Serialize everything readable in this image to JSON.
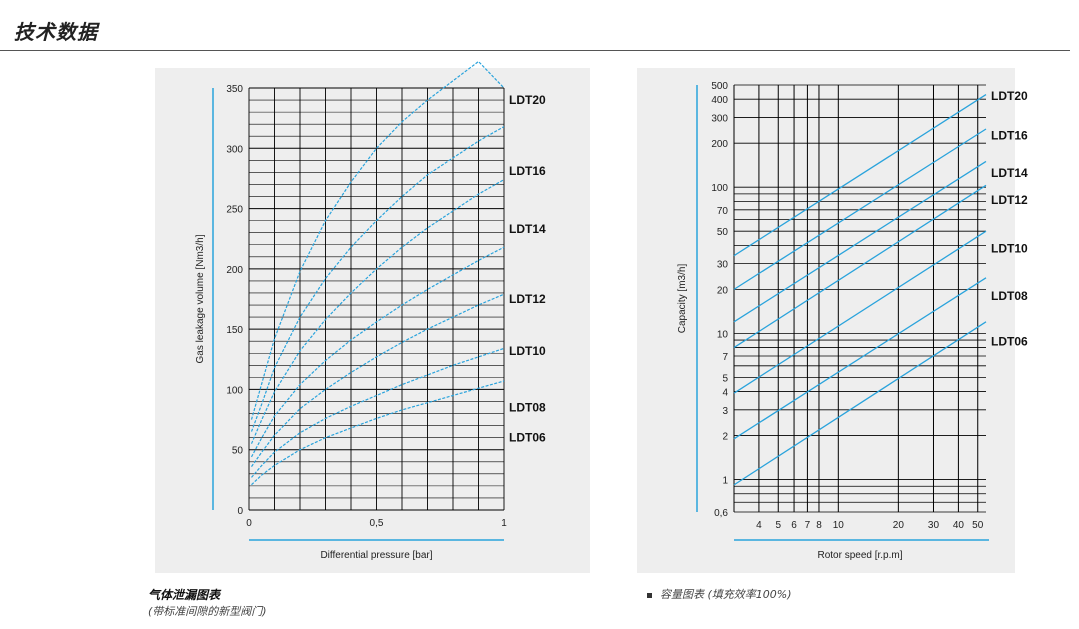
{
  "page": {
    "title": "技术数据",
    "caption_left_title": "气体泄漏图表",
    "caption_left_sub": "(带标准间隙的新型阀门)",
    "caption_right": "容量图表 (填充效率100%)"
  },
  "colors": {
    "curve": "#29a3dc",
    "grid": "#000000",
    "panel": "#eeeeee",
    "axis_bar": "#29a3dc"
  },
  "chart_data": [
    {
      "type": "line",
      "xlabel": "Differential pressure  [bar]",
      "ylabel": "Gas leakage volume [Nm3/h]",
      "xlim": [
        0,
        1
      ],
      "ylim": [
        0,
        350
      ],
      "x_ticks": [
        0,
        0.5,
        1
      ],
      "x_tick_labels": [
        "0",
        "0,5",
        "1"
      ],
      "y_ticks": [
        0,
        50,
        100,
        150,
        200,
        250,
        300,
        350
      ],
      "y_tick_labels": [
        "0",
        "50",
        "100",
        "150",
        "200",
        "250",
        "300",
        "350"
      ],
      "grid": true,
      "series": [
        {
          "name": "LDT20",
          "label_y": 340,
          "x": [
            0.01,
            0.05,
            0.1,
            0.2,
            0.3,
            0.4,
            0.5,
            0.6,
            0.7,
            0.8,
            0.9,
            1.0
          ],
          "values": [
            75,
            105,
            142,
            198,
            240,
            272,
            300,
            322,
            340,
            356,
            372,
            350
          ]
        },
        {
          "name": "LDT16",
          "label_y": 281,
          "x": [
            0.01,
            0.05,
            0.1,
            0.2,
            0.3,
            0.4,
            0.5,
            0.6,
            0.7,
            0.8,
            0.9,
            1.0
          ],
          "values": [
            65,
            88,
            118,
            160,
            192,
            218,
            240,
            260,
            278,
            292,
            306,
            318
          ]
        },
        {
          "name": "LDT14",
          "label_y": 233,
          "x": [
            0.01,
            0.05,
            0.1,
            0.2,
            0.3,
            0.4,
            0.5,
            0.6,
            0.7,
            0.8,
            0.9,
            1.0
          ],
          "values": [
            55,
            75,
            98,
            132,
            158,
            180,
            200,
            218,
            234,
            248,
            262,
            274
          ]
        },
        {
          "name": "LDT12",
          "label_y": 175,
          "x": [
            0.01,
            0.05,
            0.1,
            0.2,
            0.3,
            0.4,
            0.5,
            0.6,
            0.7,
            0.8,
            0.9,
            1.0
          ],
          "values": [
            44,
            60,
            78,
            104,
            124,
            141,
            156,
            170,
            183,
            195,
            207,
            218
          ]
        },
        {
          "name": "LDT10",
          "label_y": 132,
          "x": [
            0.01,
            0.05,
            0.1,
            0.2,
            0.3,
            0.4,
            0.5,
            0.6,
            0.7,
            0.8,
            0.9,
            1.0
          ],
          "values": [
            36,
            48,
            62,
            84,
            100,
            114,
            127,
            139,
            150,
            160,
            170,
            179
          ]
        },
        {
          "name": "LDT08",
          "label_y": 85,
          "x": [
            0.01,
            0.05,
            0.1,
            0.2,
            0.3,
            0.4,
            0.5,
            0.6,
            0.7,
            0.8,
            0.9,
            1.0
          ],
          "values": [
            27,
            37,
            48,
            64,
            76,
            86,
            95,
            104,
            112,
            120,
            127,
            134
          ]
        },
        {
          "name": "LDT06",
          "label_y": 60,
          "x": [
            0.01,
            0.05,
            0.1,
            0.2,
            0.3,
            0.4,
            0.5,
            0.6,
            0.7,
            0.8,
            0.9,
            1.0
          ],
          "values": [
            21,
            29,
            37,
            50,
            60,
            68,
            76,
            83,
            89,
            95,
            101,
            107
          ]
        }
      ]
    },
    {
      "type": "line",
      "xlabel": "Rotor speed [r.p.m]",
      "ylabel": "Capacity [m3/h]",
      "xscale": "log",
      "yscale": "log",
      "xlim": [
        3,
        55
      ],
      "ylim": [
        0.6,
        500
      ],
      "x_ticks": [
        4,
        5,
        6,
        7,
        8,
        10,
        20,
        30,
        40,
        50
      ],
      "x_tick_labels": [
        "4",
        "5",
        "6",
        "7",
        "8",
        "10",
        "20",
        "30",
        "40",
        "50"
      ],
      "y_ticks": [
        0.6,
        1,
        2,
        3,
        4,
        5,
        7,
        10,
        20,
        30,
        50,
        70,
        100,
        200,
        300,
        400,
        500
      ],
      "y_tick_labels": [
        "0,6",
        "1",
        "2",
        "3",
        "4",
        "5",
        "7",
        "10",
        "20",
        "30",
        "50",
        "70",
        "100",
        "200",
        "300",
        "400",
        "500"
      ],
      "grid": true,
      "series": [
        {
          "name": "LDT20",
          "label_y": 420,
          "x": [
            3,
            55
          ],
          "values": [
            34,
            430
          ]
        },
        {
          "name": "LDT16",
          "label_y": 225,
          "x": [
            3,
            55
          ],
          "values": [
            20,
            250
          ]
        },
        {
          "name": "LDT14",
          "label_y": 125,
          "x": [
            3,
            55
          ],
          "values": [
            12,
            150
          ]
        },
        {
          "name": "LDT12",
          "label_y": 82,
          "x": [
            3,
            55
          ],
          "values": [
            8,
            103
          ]
        },
        {
          "name": "LDT10",
          "label_y": 38,
          "x": [
            3,
            55
          ],
          "values": [
            3.9,
            50
          ]
        },
        {
          "name": "LDT08",
          "label_y": 18,
          "x": [
            3,
            55
          ],
          "values": [
            1.9,
            24
          ]
        },
        {
          "name": "LDT06",
          "label_y": 8.8,
          "x": [
            3,
            55
          ],
          "values": [
            0.92,
            12
          ]
        }
      ]
    }
  ]
}
